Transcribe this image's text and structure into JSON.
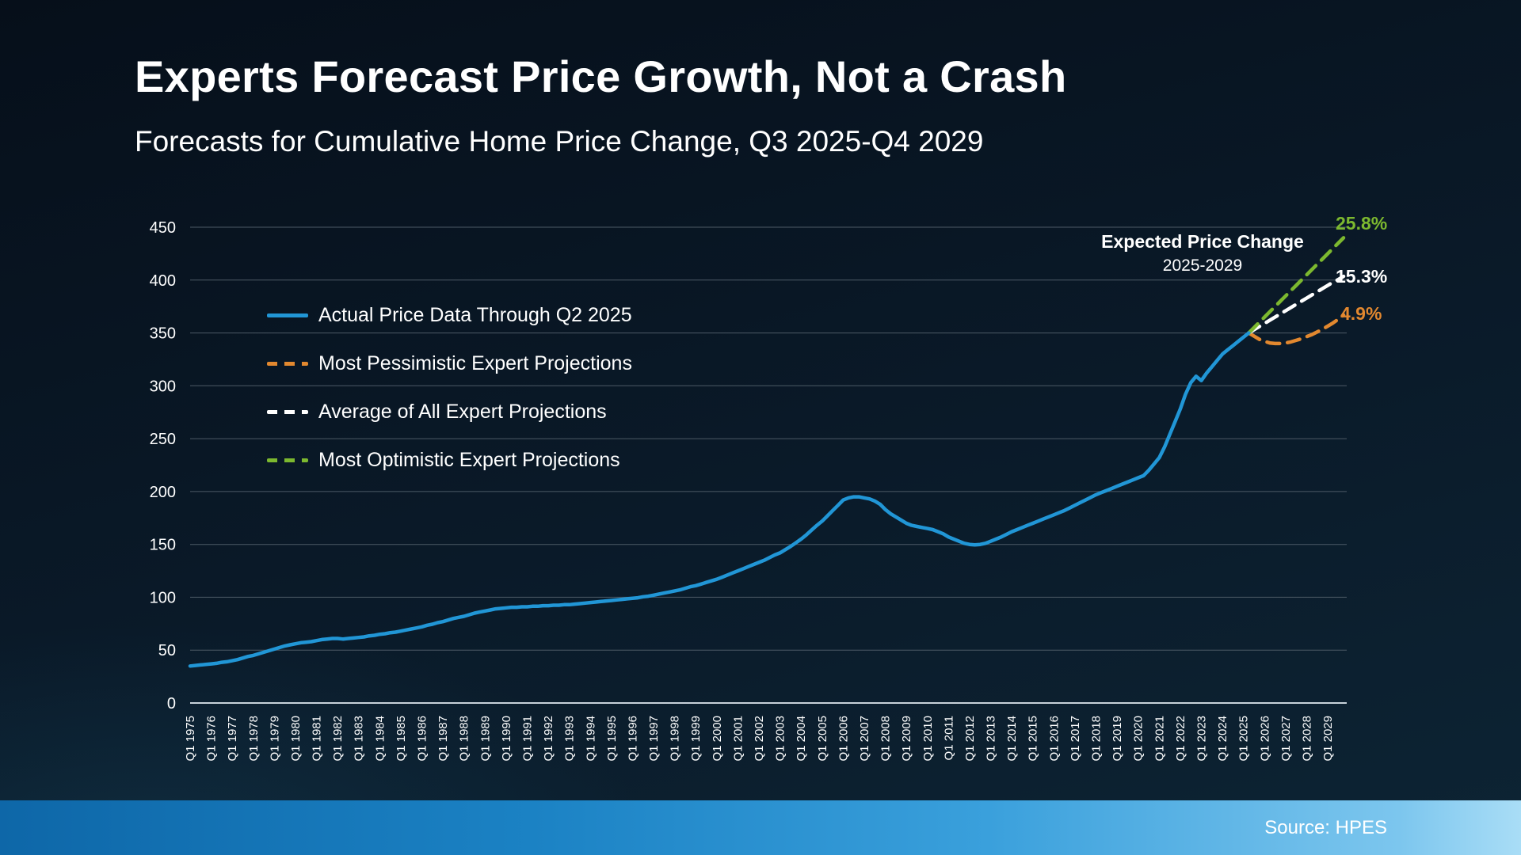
{
  "header": {
    "title": "Experts Forecast Price Growth, Not a Crash",
    "subtitle": "Forecasts for Cumulative Home Price Change, Q3 2025-Q4 2029"
  },
  "footer": {
    "source": "Source: HPES"
  },
  "annotation": {
    "line1": "Expected Price Change",
    "line2": "2025-2029"
  },
  "end_labels": {
    "optimistic": {
      "text": "25.8%",
      "color": "#7cb82f"
    },
    "average": {
      "text": "15.3%",
      "color": "#ffffff"
    },
    "pessimistic": {
      "text": "4.9%",
      "color": "#e2882f"
    }
  },
  "legend": [
    {
      "label": "Actual Price Data Through Q2 2025",
      "color": "#2196d6",
      "style": "solid"
    },
    {
      "label": "Most Pessimistic Expert Projections",
      "color": "#e2882f",
      "style": "dashed"
    },
    {
      "label": "Average of All Expert Projections",
      "color": "#ffffff",
      "style": "dashed"
    },
    {
      "label": "Most Optimistic Expert Projections",
      "color": "#7cb82f",
      "style": "dashed"
    }
  ],
  "colors": {
    "background_top": "#060f1a",
    "background_bottom": "#0d2434",
    "grid": "#4d5a66",
    "axis": "#c8d2da",
    "accent_bar": "#2b8fcc",
    "text": "#ffffff"
  },
  "chart_data": {
    "type": "line",
    "title": "Forecasts for Cumulative Home Price Change, Q3 2025-Q4 2029",
    "xlabel": "",
    "ylabel": "",
    "ylim": [
      0,
      450
    ],
    "y_ticks": [
      0,
      50,
      100,
      150,
      200,
      250,
      300,
      350,
      400,
      450
    ],
    "grid": true,
    "legend_position": "upper-left",
    "x_unit": "quarter",
    "x_quarter_count": 220,
    "x_range": [
      "Q1 1975",
      "Q4 2029"
    ],
    "x_tick_labels": [
      "Q1 1975",
      "Q1 1976",
      "Q1 1977",
      "Q1 1978",
      "Q1 1979",
      "Q1 1980",
      "Q1 1981",
      "Q1 1982",
      "Q1 1983",
      "Q1 1984",
      "Q1 1985",
      "Q1 1986",
      "Q1 1987",
      "Q1 1988",
      "Q1 1989",
      "Q1 1990",
      "Q1 1991",
      "Q1 1992",
      "Q1 1993",
      "Q1 1994",
      "Q1 1995",
      "Q1 1996",
      "Q1 1997",
      "Q1 1998",
      "Q1 1999",
      "Q1 2000",
      "Q1 2001",
      "Q1 2002",
      "Q1 2003",
      "Q1 2004",
      "Q1 2005",
      "Q1 2006",
      "Q1 2007",
      "Q1 2008",
      "Q1 2009",
      "Q1 2010",
      "Q1 2011",
      "Q1 2012",
      "Q1 2013",
      "Q1 2014",
      "Q1 2015",
      "Q1 2016",
      "Q1 2017",
      "Q1 2018",
      "Q1 2019",
      "Q1 2020",
      "Q1 2021",
      "Q1 2022",
      "Q1 2023",
      "Q1 2024",
      "Q1 2025",
      "Q1 2026",
      "Q1 2027",
      "Q1 2028",
      "Q1 2029"
    ],
    "series": [
      {
        "id": "actual",
        "name": "Actual Price Data Through Q2 2025",
        "color": "#2196d6",
        "style": "solid",
        "start_index": 0,
        "values": [
          35,
          35.5,
          36,
          36.5,
          37,
          37.5,
          38.5,
          39,
          40,
          41,
          42.5,
          44,
          45,
          46.5,
          48,
          49.5,
          51,
          52.5,
          54,
          55,
          56,
          57,
          57.5,
          58,
          59,
          60,
          60.5,
          61,
          61,
          60.5,
          61,
          61.5,
          62,
          62.5,
          63.5,
          64,
          65,
          65.5,
          66.5,
          67,
          68,
          69,
          70,
          71,
          72,
          73.5,
          74.5,
          76,
          77,
          78.5,
          80,
          81,
          82,
          83.5,
          85,
          86,
          87,
          88,
          89,
          89.5,
          90,
          90.5,
          90.5,
          91,
          91,
          91.5,
          91.5,
          92,
          92,
          92.5,
          92.5,
          93,
          93,
          93.5,
          94,
          94.5,
          95,
          95.5,
          96,
          96.5,
          97,
          97.5,
          98,
          98.5,
          99,
          99.5,
          100.5,
          101,
          102,
          103,
          104,
          105,
          106,
          107,
          108.5,
          110,
          111,
          112.5,
          114,
          115.5,
          117,
          119,
          121,
          123,
          125,
          127,
          129,
          131,
          133,
          135,
          137.5,
          140,
          142,
          145,
          148,
          151.5,
          155,
          159,
          163.5,
          168,
          172,
          177,
          182,
          187,
          192,
          194,
          195,
          195,
          194,
          193,
          191,
          188,
          183,
          179,
          176,
          173,
          170,
          168,
          167,
          166,
          165,
          164,
          162,
          160,
          157,
          155,
          153,
          151,
          150,
          149.5,
          150,
          151,
          153,
          155,
          157,
          159.5,
          162,
          164,
          166,
          168,
          170,
          172,
          174,
          176,
          178,
          180,
          182,
          184.5,
          187,
          189.5,
          192,
          194.5,
          197,
          199,
          201,
          203,
          205,
          207,
          209,
          211,
          213,
          215,
          220,
          226,
          232,
          242,
          254,
          266,
          278,
          292,
          303,
          309,
          305,
          312,
          318,
          324,
          330,
          334,
          338,
          342,
          346,
          350
        ]
      },
      {
        "id": "pessimistic",
        "name": "Most Pessimistic Expert Projections",
        "color": "#e2882f",
        "style": "dashed",
        "start_index": 201,
        "end_label": "4.9%",
        "values": [
          350,
          347,
          344,
          342,
          340.5,
          340,
          340,
          340.5,
          341.5,
          343,
          344.5,
          346.5,
          348.5,
          351,
          353.5,
          356.5,
          359.5,
          363,
          367
        ]
      },
      {
        "id": "average",
        "name": "Average of All Expert Projections",
        "color": "#ffffff",
        "style": "dashed",
        "start_index": 201,
        "end_label": "15.3%",
        "values": [
          350,
          353,
          356,
          359,
          362,
          365,
          368,
          371,
          374,
          377,
          380,
          383,
          386,
          389,
          392,
          395,
          398,
          400.5,
          403.5
        ]
      },
      {
        "id": "optimistic",
        "name": "Most Optimistic Expert Projections",
        "color": "#7cb82f",
        "style": "dashed",
        "start_index": 201,
        "end_label": "25.8%",
        "values": [
          350,
          355,
          360,
          365,
          370,
          375,
          380,
          385,
          390,
          395,
          400,
          405,
          410,
          415,
          420,
          425,
          430,
          435,
          440
        ]
      }
    ]
  }
}
